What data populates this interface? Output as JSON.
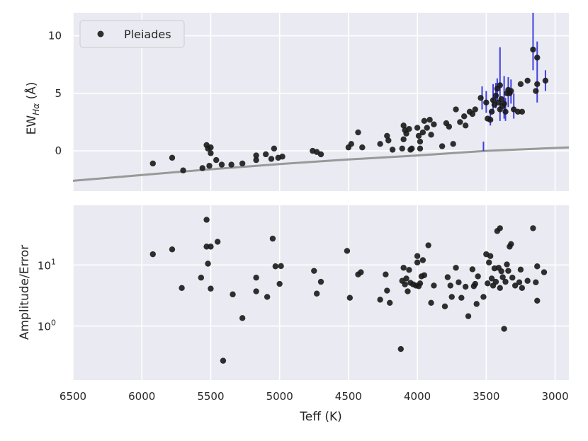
{
  "chart_data": [
    {
      "type": "scatter",
      "panel": "top",
      "title": "",
      "xlabel": "",
      "ylabel_main": "EW",
      "ylabel_sub": "Hα",
      "ylabel_tail": " (Å)",
      "xlim": [
        6500,
        2900
      ],
      "x_inverted": true,
      "ylim": [
        -3.5,
        12
      ],
      "xticks": [
        6500,
        6000,
        5500,
        5000,
        4500,
        4000,
        3500,
        3000
      ],
      "yticks": [
        0,
        5,
        10
      ],
      "ytick_labels": [
        "0",
        "5",
        "10"
      ],
      "grid": true,
      "legend": {
        "position": "top-left",
        "entries": [
          "Pleiades"
        ]
      },
      "colors": {
        "points": "#1a1a1a",
        "errorbars": "#2222dd",
        "line": "#999999",
        "background": "#eaeaf2",
        "grid": "#ffffff"
      },
      "reference_line": {
        "x": [
          6500,
          6000,
          5500,
          5000,
          4500,
          4000,
          3500,
          2900
        ],
        "y": [
          -2.6,
          -2.1,
          -1.6,
          -1.15,
          -0.75,
          -0.4,
          0.0,
          0.3
        ]
      },
      "series": [
        {
          "name": "Pleiades",
          "points": [
            [
              5920,
              -1.1
            ],
            [
              5780,
              -0.6
            ],
            [
              5700,
              -1.7
            ],
            [
              5560,
              -1.5
            ],
            [
              5530,
              0.5
            ],
            [
              5520,
              0.2
            ],
            [
              5510,
              -1.3
            ],
            [
              5500,
              -0.2
            ],
            [
              5500,
              0.3
            ],
            [
              5460,
              -0.8
            ],
            [
              5420,
              -1.2
            ],
            [
              5350,
              -1.2
            ],
            [
              5270,
              -1.1
            ],
            [
              5170,
              -0.4
            ],
            [
              5170,
              -0.8
            ],
            [
              5100,
              -0.3
            ],
            [
              5060,
              -0.7
            ],
            [
              5040,
              0.2
            ],
            [
              5010,
              -0.6
            ],
            [
              4980,
              -0.5
            ],
            [
              4760,
              0.0
            ],
            [
              4730,
              -0.1
            ],
            [
              4700,
              -0.3
            ],
            [
              4500,
              0.3
            ],
            [
              4480,
              0.6
            ],
            [
              4430,
              1.6
            ],
            [
              4400,
              0.3
            ],
            [
              4270,
              0.6
            ],
            [
              4220,
              1.3
            ],
            [
              4210,
              0.9
            ],
            [
              4180,
              0.1
            ],
            [
              4110,
              0.2
            ],
            [
              4100,
              2.2
            ],
            [
              4100,
              1.0
            ],
            [
              4090,
              1.8
            ],
            [
              4080,
              1.5
            ],
            [
              4060,
              1.9
            ],
            [
              4050,
              0.1
            ],
            [
              4040,
              0.2
            ],
            [
              4000,
              2.0
            ],
            [
              3990,
              1.3
            ],
            [
              3980,
              0.8
            ],
            [
              3980,
              0.2
            ],
            [
              3960,
              1.6
            ],
            [
              3950,
              2.6
            ],
            [
              3930,
              2.0
            ],
            [
              3910,
              2.7
            ],
            [
              3900,
              1.4
            ],
            [
              3880,
              2.3
            ],
            [
              3820,
              0.4
            ],
            [
              3790,
              2.4
            ],
            [
              3770,
              2.1
            ],
            [
              3740,
              0.6
            ],
            [
              3720,
              3.6
            ],
            [
              3690,
              2.5
            ],
            [
              3660,
              3.0
            ],
            [
              3650,
              2.2
            ],
            [
              3620,
              3.4
            ],
            [
              3600,
              3.2
            ],
            [
              3580,
              3.6
            ],
            [
              3540,
              4.6
            ],
            [
              3500,
              4.2
            ],
            [
              3490,
              2.8
            ],
            [
              3470,
              2.7
            ],
            [
              3460,
              3.4
            ],
            [
              3450,
              4.4
            ],
            [
              3440,
              4.0
            ],
            [
              3430,
              4.8
            ],
            [
              3420,
              5.4
            ],
            [
              3410,
              4.2
            ],
            [
              3400,
              3.6
            ],
            [
              3400,
              5.7
            ],
            [
              3390,
              4.5
            ],
            [
              3380,
              3.9
            ],
            [
              3370,
              4.1
            ],
            [
              3360,
              3.4
            ],
            [
              3350,
              5.0
            ],
            [
              3340,
              5.3
            ],
            [
              3330,
              5.0
            ],
            [
              3320,
              5.2
            ],
            [
              3300,
              3.6
            ],
            [
              3270,
              3.4
            ],
            [
              3250,
              5.8
            ],
            [
              3240,
              3.4
            ],
            [
              3200,
              6.1
            ],
            [
              3160,
              8.8
            ],
            [
              3140,
              5.2
            ],
            [
              3130,
              5.8
            ],
            [
              3130,
              8.1
            ],
            [
              3070,
              6.1
            ]
          ],
          "error_bars": [
            [
              3160,
              7.0,
              12.0
            ],
            [
              3130,
              6.5,
              9.5
            ],
            [
              3400,
              2.6,
              9.0
            ],
            [
              3370,
              2.8,
              6.5
            ],
            [
              3130,
              4.2,
              6.5
            ],
            [
              3450,
              3.3,
              5.8
            ],
            [
              3340,
              3.8,
              6.4
            ],
            [
              3300,
              2.8,
              5.0
            ],
            [
              3470,
              2.2,
              3.5
            ],
            [
              3070,
              5.2,
              7.0
            ],
            [
              3530,
              3.6,
              5.6
            ],
            [
              3420,
              4.3,
              6.3
            ],
            [
              3360,
              2.6,
              4.6
            ],
            [
              3500,
              3.3,
              5.2
            ],
            [
              3430,
              3.7,
              5.9
            ],
            [
              3320,
              4.1,
              6.2
            ],
            [
              3520,
              0.0,
              0.8
            ]
          ]
        }
      ]
    },
    {
      "type": "scatter",
      "panel": "bottom",
      "title": "",
      "xlabel": "Teff (K)",
      "ylabel": "Amplitude/Error",
      "xlim": [
        6500,
        2900
      ],
      "x_inverted": true,
      "ylim": [
        0.13,
        95
      ],
      "yscale": "log",
      "xticks": [
        6500,
        6000,
        5500,
        5000,
        4500,
        4000,
        3500,
        3000
      ],
      "xtick_labels": [
        "6500",
        "6000",
        "5500",
        "5000",
        "4500",
        "4000",
        "3500",
        "3000"
      ],
      "yticks": [
        1,
        10
      ],
      "ytick_base": "10",
      "ytick_exponents": [
        "0",
        "1"
      ],
      "grid": true,
      "series": [
        {
          "name": "",
          "points": [
            [
              5920,
              15
            ],
            [
              5780,
              18
            ],
            [
              5710,
              4.2
            ],
            [
              5570,
              6.2
            ],
            [
              5530,
              55
            ],
            [
              5530,
              20
            ],
            [
              5520,
              10.5
            ],
            [
              5500,
              20
            ],
            [
              5500,
              4.1
            ],
            [
              5450,
              24
            ],
            [
              5410,
              0.27
            ],
            [
              5340,
              3.3
            ],
            [
              5270,
              1.35
            ],
            [
              5170,
              6.2
            ],
            [
              5170,
              3.7
            ],
            [
              5090,
              3.0
            ],
            [
              5050,
              27
            ],
            [
              5030,
              9.5
            ],
            [
              5000,
              4.9
            ],
            [
              4990,
              9.6
            ],
            [
              4750,
              8.0
            ],
            [
              4730,
              3.4
            ],
            [
              4700,
              5.3
            ],
            [
              4510,
              17
            ],
            [
              4490,
              2.9
            ],
            [
              4430,
              7.0
            ],
            [
              4410,
              7.6
            ],
            [
              4270,
              2.7
            ],
            [
              4230,
              7.0
            ],
            [
              4220,
              3.8
            ],
            [
              4200,
              2.4
            ],
            [
              4120,
              0.42
            ],
            [
              4110,
              5.5
            ],
            [
              4100,
              9.0
            ],
            [
              4090,
              4.8
            ],
            [
              4080,
              6.0
            ],
            [
              4070,
              3.7
            ],
            [
              4060,
              8.3
            ],
            [
              4050,
              5.1
            ],
            [
              4030,
              4.8
            ],
            [
              4010,
              4.6
            ],
            [
              4000,
              11
            ],
            [
              4000,
              14
            ],
            [
              3990,
              4.5
            ],
            [
              3980,
              5.0
            ],
            [
              3970,
              6.5
            ],
            [
              3960,
              12
            ],
            [
              3950,
              6.8
            ],
            [
              3920,
              21
            ],
            [
              3900,
              2.4
            ],
            [
              3880,
              4.6
            ],
            [
              3800,
              2.1
            ],
            [
              3780,
              6.3
            ],
            [
              3760,
              4.6
            ],
            [
              3750,
              3.0
            ],
            [
              3720,
              9.0
            ],
            [
              3700,
              5.2
            ],
            [
              3680,
              2.9
            ],
            [
              3650,
              4.4
            ],
            [
              3630,
              1.45
            ],
            [
              3600,
              8.5
            ],
            [
              3590,
              4.5
            ],
            [
              3580,
              4.9
            ],
            [
              3570,
              2.3
            ],
            [
              3560,
              6.5
            ],
            [
              3520,
              3.0
            ],
            [
              3500,
              15
            ],
            [
              3490,
              5.0
            ],
            [
              3480,
              11
            ],
            [
              3470,
              14
            ],
            [
              3460,
              6.0
            ],
            [
              3450,
              4.6
            ],
            [
              3440,
              8.8
            ],
            [
              3430,
              5.3
            ],
            [
              3420,
              36
            ],
            [
              3410,
              9.0
            ],
            [
              3400,
              4.2
            ],
            [
              3400,
              40
            ],
            [
              3390,
              7.9
            ],
            [
              3380,
              6.3
            ],
            [
              3370,
              0.9
            ],
            [
              3360,
              5.3
            ],
            [
              3350,
              10.2
            ],
            [
              3340,
              8.0
            ],
            [
              3330,
              20
            ],
            [
              3320,
              22
            ],
            [
              3310,
              6.2
            ],
            [
              3290,
              4.6
            ],
            [
              3260,
              5.2
            ],
            [
              3250,
              8.4
            ],
            [
              3240,
              4.2
            ],
            [
              3200,
              5.5
            ],
            [
              3160,
              40
            ],
            [
              3140,
              5.2
            ],
            [
              3130,
              9.5
            ],
            [
              3130,
              2.6
            ],
            [
              3080,
              7.6
            ]
          ]
        }
      ]
    }
  ]
}
